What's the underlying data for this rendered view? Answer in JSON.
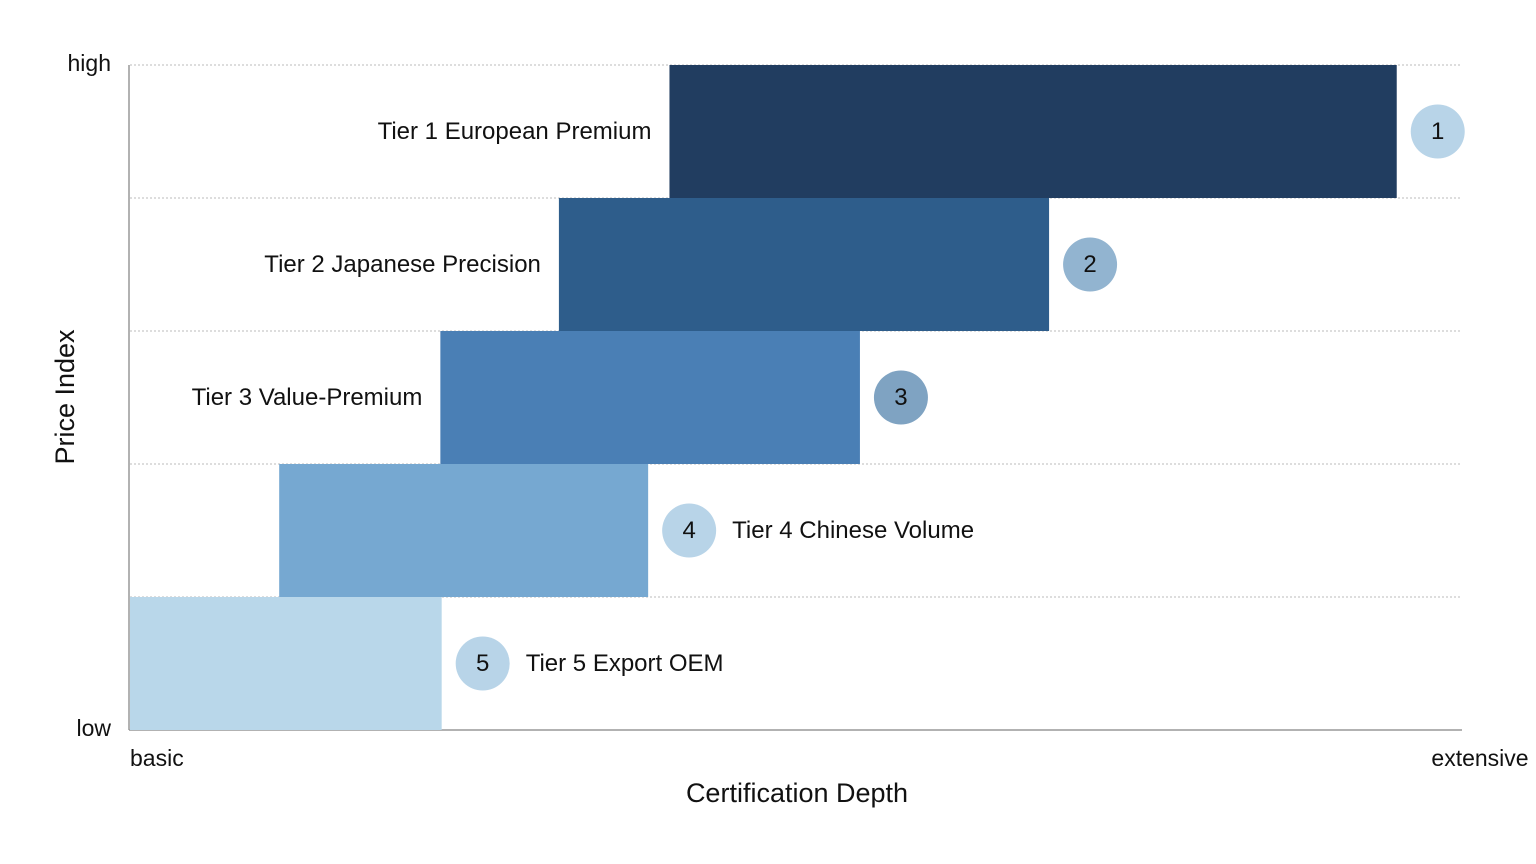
{
  "chart_data": {
    "type": "range-bar",
    "x_label": "Certification Depth",
    "y_label": "Price Index",
    "categories": [
      "Tier 1 European Premium",
      "Tier 2 Japanese Precision",
      "Tier 3 Value-Premium",
      "Tier 4 Chinese Volume",
      "Tier 5 Export OEM"
    ],
    "ranks": [
      "1",
      "2",
      "3",
      "4",
      "5"
    ],
    "series": [
      {
        "start": [
          40.5,
          32.2,
          23.3,
          11.2,
          0
        ],
        "end": [
          95.1,
          69.0,
          54.8,
          38.9,
          23.4
        ],
        "colors": [
          "#213d60",
          "#2e5d8b",
          "#4a7fb5",
          "#76a8d1",
          "#b9d7ea"
        ],
        "rank_colors": [
          "#b8d4e8",
          "#92b4d0",
          "#7fa3c2",
          "#b8d4e8",
          "#b8d4e8"
        ]
      }
    ],
    "xlim": [
      0,
      100
    ],
    "xticks": [
      {
        "value": 0,
        "label": "basic"
      },
      {
        "value": 100,
        "label": "extensive"
      }
    ],
    "ylim": [
      0,
      5
    ],
    "yticks": [
      {
        "value": 0,
        "label": "low"
      },
      {
        "value": 5,
        "label": "high"
      }
    ],
    "grid": true
  }
}
